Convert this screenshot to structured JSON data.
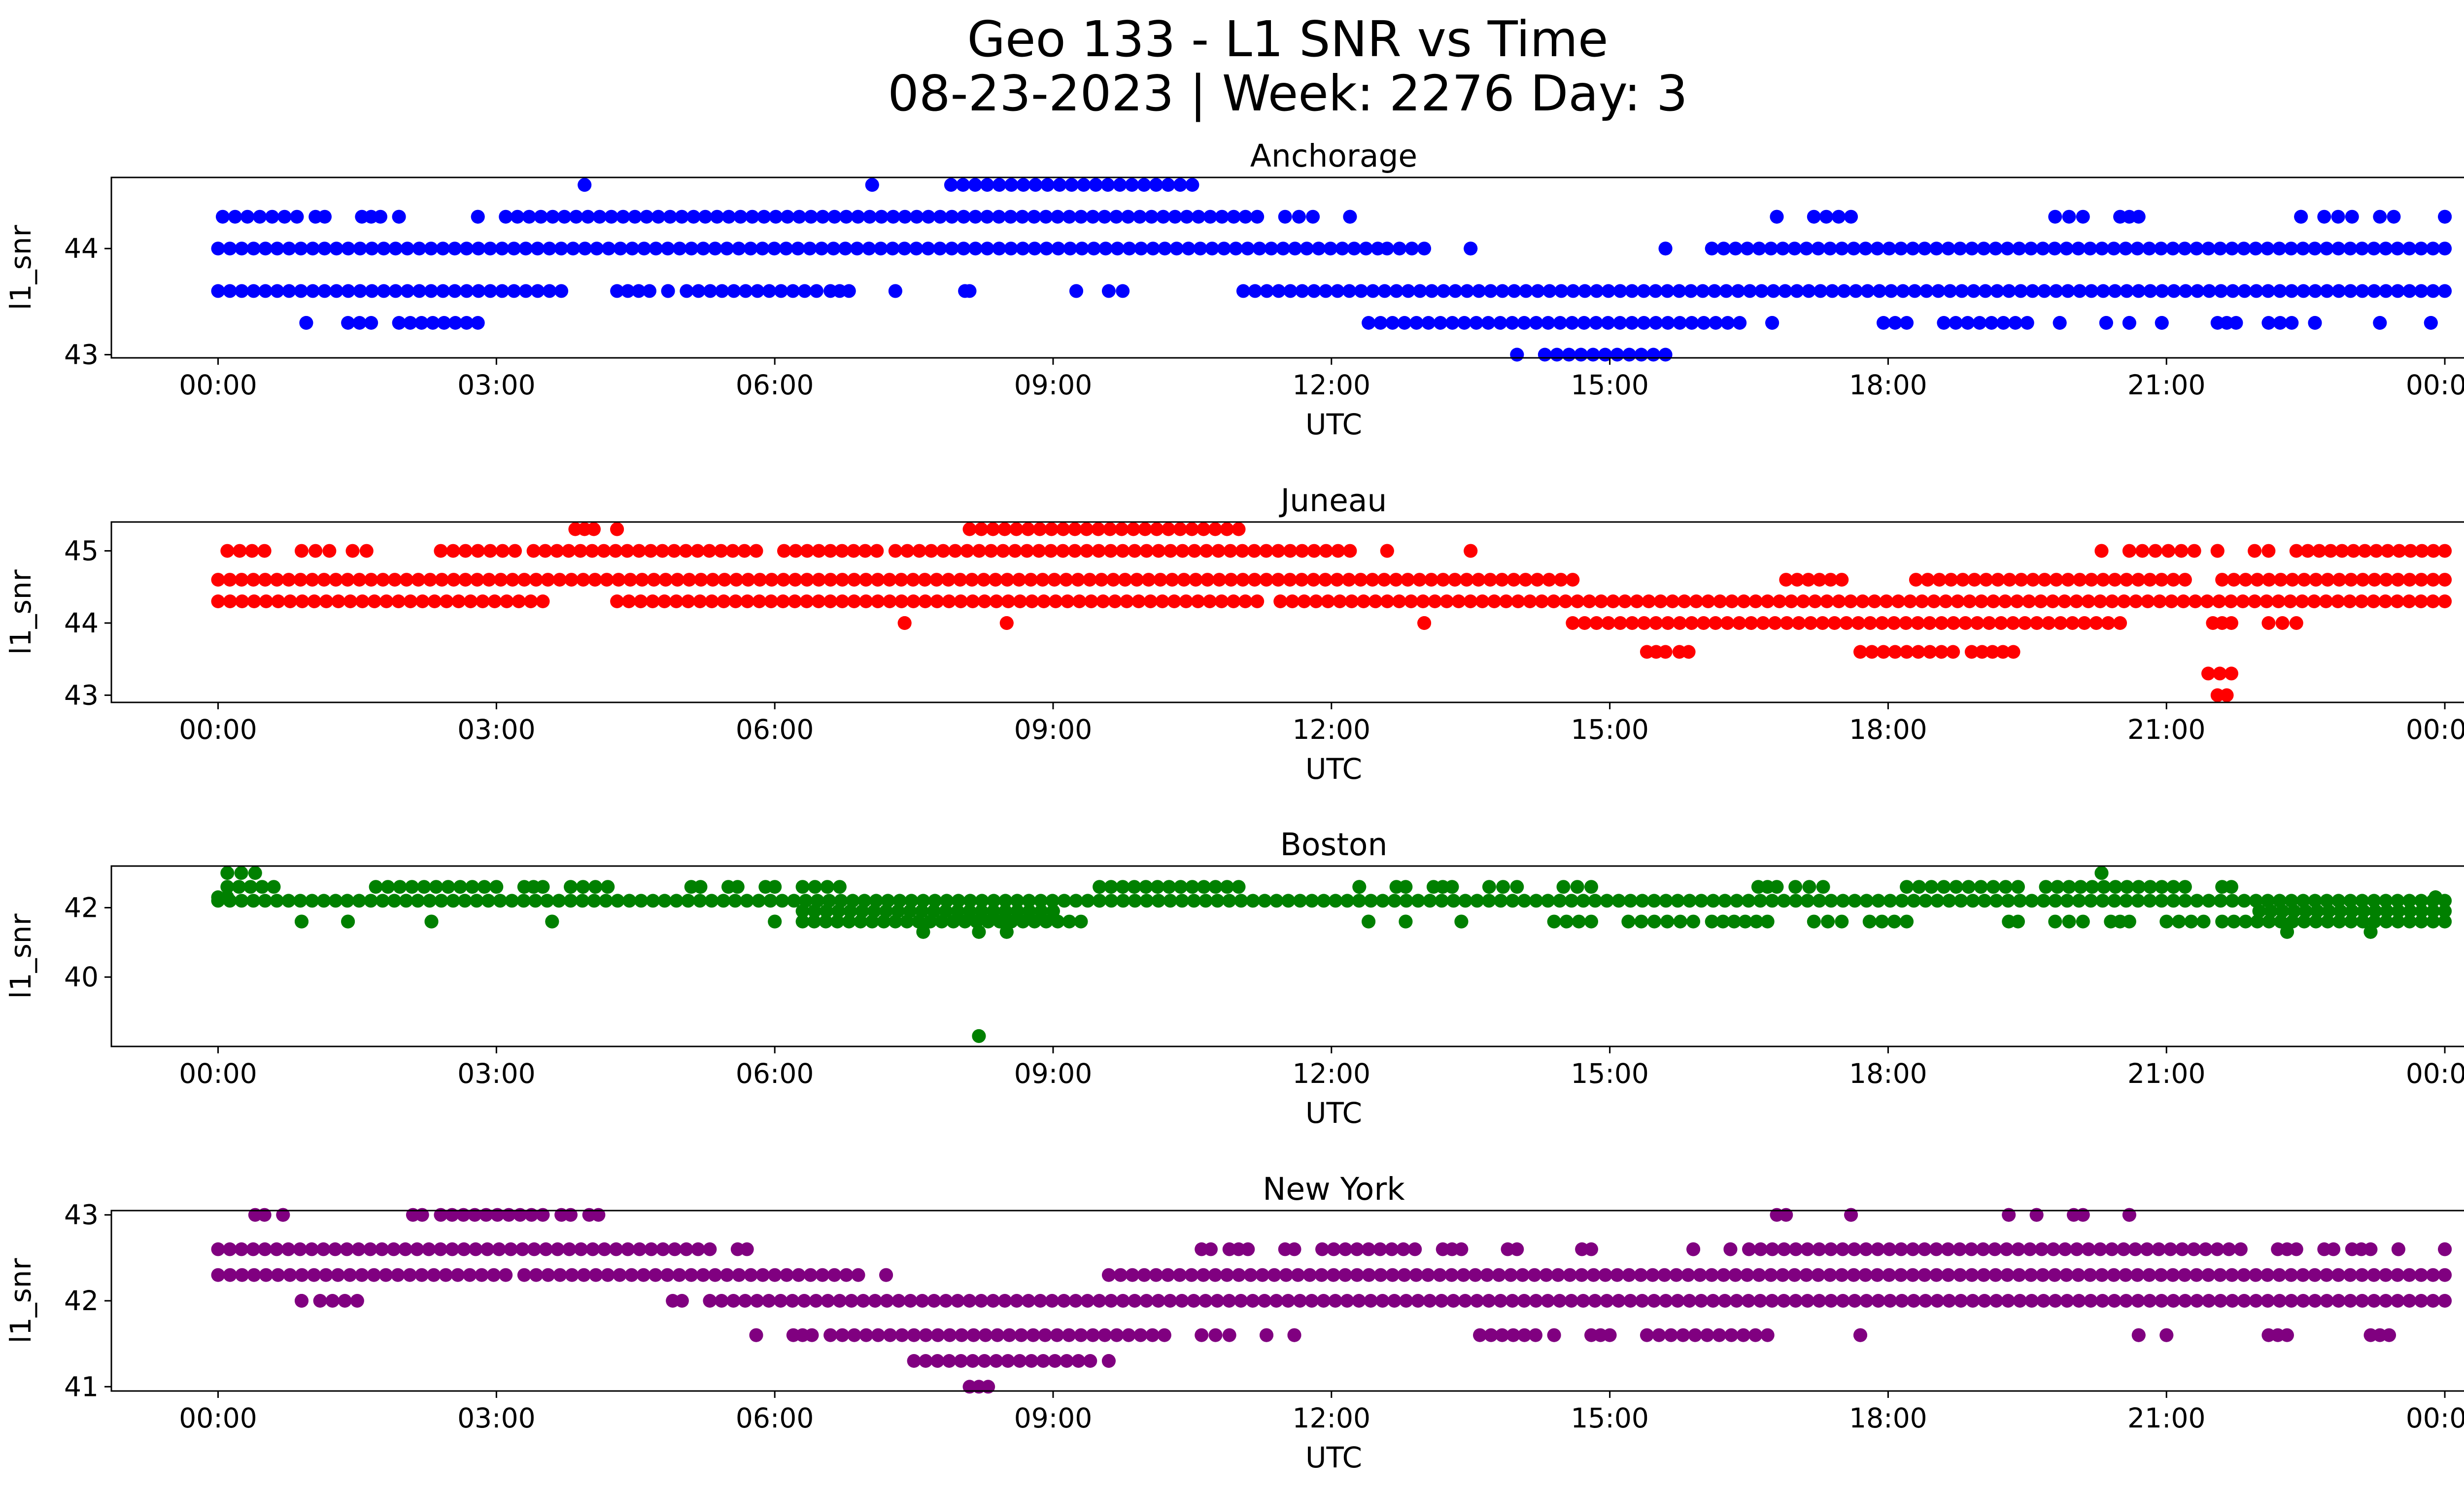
{
  "figure": {
    "title_line1": "Geo 133 - L1 SNR vs Time",
    "title_line2": "08-23-2023 | Week: 2276 Day: 3"
  },
  "chart_data": [
    {
      "type": "scatter",
      "title": "Anchorage",
      "xlabel": "UTC",
      "ylabel": "l1_snr",
      "color": "#0000ff",
      "x_ticks": [
        "00:00",
        "03:00",
        "06:00",
        "09:00",
        "12:00",
        "15:00",
        "18:00",
        "21:00",
        "00:00"
      ],
      "xlim_hours": [
        -1.15,
        25.2
      ],
      "y_ticks": [
        43,
        44
      ],
      "ylim": [
        42.97,
        44.67
      ],
      "levels": [
        {
          "y": 44.6,
          "ranges": [
            [
              3.95,
              3.95
            ],
            [
              7.05,
              7.05
            ],
            [
              7.9,
              10.5
            ]
          ]
        },
        {
          "y": 44.3,
          "ranges": [
            [
              0.05,
              0.85
            ],
            [
              1.05,
              1.15
            ],
            [
              1.55,
              1.75
            ],
            [
              1.95,
              1.95
            ],
            [
              2.8,
              2.8
            ],
            [
              3.1,
              11.2
            ],
            [
              11.5,
              11.8
            ],
            [
              12.2,
              12.2
            ],
            [
              16.8,
              16.8
            ],
            [
              17.2,
              17.6
            ],
            [
              19.8,
              20.1
            ],
            [
              20.5,
              20.7
            ],
            [
              22.45,
              22.45
            ],
            [
              22.7,
              23.0
            ],
            [
              23.3,
              23.45
            ],
            [
              24.0,
              24.0
            ]
          ]
        },
        {
          "y": 44.0,
          "ranges": [
            [
              0.0,
              12.5
            ],
            [
              12.6,
              13.0
            ],
            [
              13.5,
              13.5
            ],
            [
              15.6,
              15.6
            ],
            [
              16.1,
              24.0
            ]
          ]
        },
        {
          "y": 43.6,
          "ranges": [
            [
              0.0,
              3.7
            ],
            [
              4.3,
              4.65
            ],
            [
              4.85,
              4.85
            ],
            [
              5.05,
              6.45
            ],
            [
              6.6,
              6.8
            ],
            [
              7.3,
              7.3
            ],
            [
              8.05,
              8.1
            ],
            [
              9.25,
              9.25
            ],
            [
              9.6,
              9.75
            ],
            [
              11.05,
              24.0
            ]
          ]
        },
        {
          "y": 43.3,
          "ranges": [
            [
              0.95,
              0.95
            ],
            [
              1.4,
              1.65
            ],
            [
              1.95,
              2.8
            ],
            [
              12.4,
              16.4
            ],
            [
              16.75,
              16.75
            ],
            [
              17.95,
              18.2
            ],
            [
              18.6,
              19.5
            ],
            [
              19.85,
              19.85
            ],
            [
              20.35,
              20.35
            ],
            [
              20.6,
              20.6
            ],
            [
              20.95,
              20.95
            ],
            [
              21.55,
              21.75
            ],
            [
              22.1,
              22.35
            ],
            [
              22.6,
              22.6
            ],
            [
              23.3,
              23.3
            ],
            [
              23.85,
              23.85
            ]
          ]
        },
        {
          "y": 43.0,
          "ranges": [
            [
              14.0,
              14.0
            ],
            [
              14.3,
              15.6
            ]
          ]
        }
      ]
    },
    {
      "type": "scatter",
      "title": "Juneau",
      "xlabel": "UTC",
      "ylabel": "l1_snr",
      "color": "#ff0000",
      "x_ticks": [
        "00:00",
        "03:00",
        "06:00",
        "09:00",
        "12:00",
        "15:00",
        "18:00",
        "21:00",
        "00:00"
      ],
      "xlim_hours": [
        -1.15,
        25.2
      ],
      "y_ticks": [
        43,
        44,
        45
      ],
      "ylim": [
        42.9,
        45.4
      ],
      "levels": [
        {
          "y": 45.3,
          "ranges": [
            [
              3.85,
              4.05
            ],
            [
              4.3,
              4.3
            ],
            [
              8.1,
              11.0
            ]
          ]
        },
        {
          "y": 45.0,
          "ranges": [
            [
              0.1,
              0.5
            ],
            [
              0.9,
              1.2
            ],
            [
              1.45,
              1.6
            ],
            [
              2.4,
              3.2
            ],
            [
              3.4,
              5.8
            ],
            [
              6.1,
              7.1
            ],
            [
              7.3,
              12.2
            ],
            [
              12.6,
              12.6
            ],
            [
              13.5,
              13.5
            ],
            [
              20.3,
              20.3
            ],
            [
              20.6,
              21.3
            ],
            [
              21.55,
              21.55
            ],
            [
              21.95,
              22.1
            ],
            [
              22.4,
              24.0
            ]
          ]
        },
        {
          "y": 44.6,
          "ranges": [
            [
              0.0,
              14.6
            ],
            [
              16.9,
              17.5
            ],
            [
              18.3,
              21.2
            ],
            [
              21.6,
              24.0
            ]
          ]
        },
        {
          "y": 44.3,
          "ranges": [
            [
              0.0,
              3.5
            ],
            [
              4.3,
              11.2
            ],
            [
              11.45,
              24.0
            ]
          ]
        },
        {
          "y": 44.0,
          "ranges": [
            [
              7.4,
              7.4
            ],
            [
              8.5,
              8.5
            ],
            [
              13.0,
              13.0
            ],
            [
              14.6,
              20.5
            ],
            [
              21.5,
              21.7
            ],
            [
              22.1,
              22.4
            ]
          ]
        },
        {
          "y": 43.6,
          "ranges": [
            [
              15.4,
              15.6
            ],
            [
              15.75,
              15.85
            ],
            [
              17.7,
              18.7
            ],
            [
              18.9,
              19.35
            ]
          ]
        },
        {
          "y": 43.3,
          "ranges": [
            [
              21.45,
              21.7
            ]
          ]
        },
        {
          "y": 43.0,
          "ranges": [
            [
              21.55,
              21.65
            ]
          ]
        }
      ]
    },
    {
      "type": "scatter",
      "title": "Boston",
      "xlabel": "UTC",
      "ylabel": "l1_snr",
      "color": "#008000",
      "x_ticks": [
        "00:00",
        "03:00",
        "06:00",
        "09:00",
        "12:00",
        "15:00",
        "18:00",
        "21:00",
        "00:00"
      ],
      "xlim_hours": [
        -1.15,
        25.2
      ],
      "y_ticks": [
        40,
        42
      ],
      "ylim": [
        38.0,
        43.2
      ],
      "levels": [
        {
          "y": 43.0,
          "ranges": [
            [
              0.1,
              0.4
            ],
            [
              20.3,
              20.3
            ]
          ]
        },
        {
          "y": 42.6,
          "ranges": [
            [
              0.1,
              0.6
            ],
            [
              1.7,
              3.0
            ],
            [
              3.3,
              3.5
            ],
            [
              3.8,
              4.2
            ],
            [
              5.1,
              5.2
            ],
            [
              5.5,
              5.6
            ],
            [
              5.9,
              6.0
            ],
            [
              6.3,
              6.7
            ],
            [
              9.5,
              11.0
            ],
            [
              12.3,
              12.3
            ],
            [
              12.7,
              12.8
            ],
            [
              13.1,
              13.3
            ],
            [
              13.7,
              14.0
            ],
            [
              14.5,
              14.8
            ],
            [
              16.6,
              16.8
            ],
            [
              17.0,
              17.3
            ],
            [
              18.2,
              19.4
            ],
            [
              19.7,
              21.2
            ],
            [
              21.6,
              21.7
            ]
          ]
        },
        {
          "y": 42.3,
          "ranges": [
            [
              0.0,
              0.1
            ],
            [
              23.9,
              23.9
            ]
          ]
        },
        {
          "y": 42.2,
          "ranges": [
            [
              0.0,
              9.5
            ],
            [
              9.5,
              24.0
            ]
          ]
        },
        {
          "y": 41.9,
          "ranges": [
            [
              6.3,
              9.0
            ],
            [
              22.0,
              24.0
            ]
          ]
        },
        {
          "y": 41.6,
          "ranges": [
            [
              0.9,
              0.9
            ],
            [
              1.4,
              1.4
            ],
            [
              2.3,
              2.3
            ],
            [
              3.6,
              3.6
            ],
            [
              6.0,
              6.0
            ],
            [
              6.3,
              9.3
            ],
            [
              12.4,
              12.4
            ],
            [
              12.8,
              12.8
            ],
            [
              13.4,
              13.4
            ],
            [
              14.4,
              14.8
            ],
            [
              15.2,
              15.9
            ],
            [
              16.1,
              16.7
            ],
            [
              17.2,
              17.5
            ],
            [
              17.8,
              18.2
            ],
            [
              19.3,
              19.4
            ],
            [
              19.8,
              20.1
            ],
            [
              20.4,
              20.6
            ],
            [
              21.0,
              21.4
            ],
            [
              21.6,
              24.0
            ]
          ]
        },
        {
          "y": 41.3,
          "ranges": [
            [
              7.6,
              7.6
            ],
            [
              8.2,
              8.2
            ],
            [
              8.5,
              8.5
            ],
            [
              22.3,
              22.3
            ],
            [
              23.2,
              23.2
            ]
          ]
        },
        {
          "y": 38.3,
          "ranges": [
            [
              8.2,
              8.2
            ]
          ]
        }
      ]
    },
    {
      "type": "scatter",
      "title": "New York",
      "xlabel": "UTC",
      "ylabel": "l1_snr",
      "color": "#800080",
      "x_ticks": [
        "00:00",
        "03:00",
        "06:00",
        "09:00",
        "12:00",
        "15:00",
        "18:00",
        "21:00",
        "00:00"
      ],
      "xlim_hours": [
        -1.15,
        25.2
      ],
      "y_ticks": [
        41,
        42,
        43
      ],
      "ylim": [
        40.95,
        43.05
      ],
      "levels": [
        {
          "y": 43.0,
          "ranges": [
            [
              0.4,
              0.5
            ],
            [
              0.7,
              0.7
            ],
            [
              2.1,
              2.2
            ],
            [
              2.4,
              3.5
            ],
            [
              3.7,
              3.8
            ],
            [
              4.0,
              4.1
            ],
            [
              16.8,
              16.9
            ],
            [
              17.6,
              17.6
            ],
            [
              19.3,
              19.3
            ],
            [
              19.6,
              19.6
            ],
            [
              20.0,
              20.1
            ],
            [
              20.6,
              20.6
            ]
          ]
        },
        {
          "y": 42.6,
          "ranges": [
            [
              0.0,
              5.3
            ],
            [
              5.6,
              5.7
            ],
            [
              10.6,
              10.7
            ],
            [
              10.9,
              11.1
            ],
            [
              11.5,
              11.6
            ],
            [
              11.9,
              12.9
            ],
            [
              13.2,
              13.4
            ],
            [
              13.9,
              14.0
            ],
            [
              14.7,
              14.8
            ],
            [
              15.9,
              15.9
            ],
            [
              16.3,
              16.3
            ],
            [
              16.5,
              21.8
            ],
            [
              22.2,
              22.4
            ],
            [
              22.7,
              22.8
            ],
            [
              23.0,
              23.2
            ],
            [
              23.5,
              23.5
            ],
            [
              24.0,
              24.0
            ]
          ]
        },
        {
          "y": 42.3,
          "ranges": [
            [
              0.0,
              3.1
            ],
            [
              3.3,
              6.9
            ],
            [
              7.2,
              7.2
            ],
            [
              9.6,
              24.0
            ]
          ]
        },
        {
          "y": 42.0,
          "ranges": [
            [
              0.9,
              0.9
            ],
            [
              1.1,
              1.5
            ],
            [
              4.9,
              5.0
            ],
            [
              5.3,
              24.0
            ]
          ]
        },
        {
          "y": 41.6,
          "ranges": [
            [
              5.8,
              5.8
            ],
            [
              6.2,
              6.4
            ],
            [
              6.6,
              10.2
            ],
            [
              10.6,
              10.9
            ],
            [
              11.3,
              11.3
            ],
            [
              11.6,
              11.6
            ],
            [
              13.6,
              14.2
            ],
            [
              14.4,
              14.4
            ],
            [
              14.8,
              15.0
            ],
            [
              15.4,
              16.7
            ],
            [
              17.7,
              17.7
            ],
            [
              20.7,
              20.7
            ],
            [
              21.0,
              21.0
            ],
            [
              22.1,
              22.3
            ],
            [
              23.2,
              23.4
            ]
          ]
        },
        {
          "y": 41.3,
          "ranges": [
            [
              7.5,
              9.4
            ],
            [
              9.6,
              9.6
            ]
          ]
        },
        {
          "y": 41.0,
          "ranges": [
            [
              8.1,
              8.3
            ]
          ]
        }
      ]
    }
  ]
}
